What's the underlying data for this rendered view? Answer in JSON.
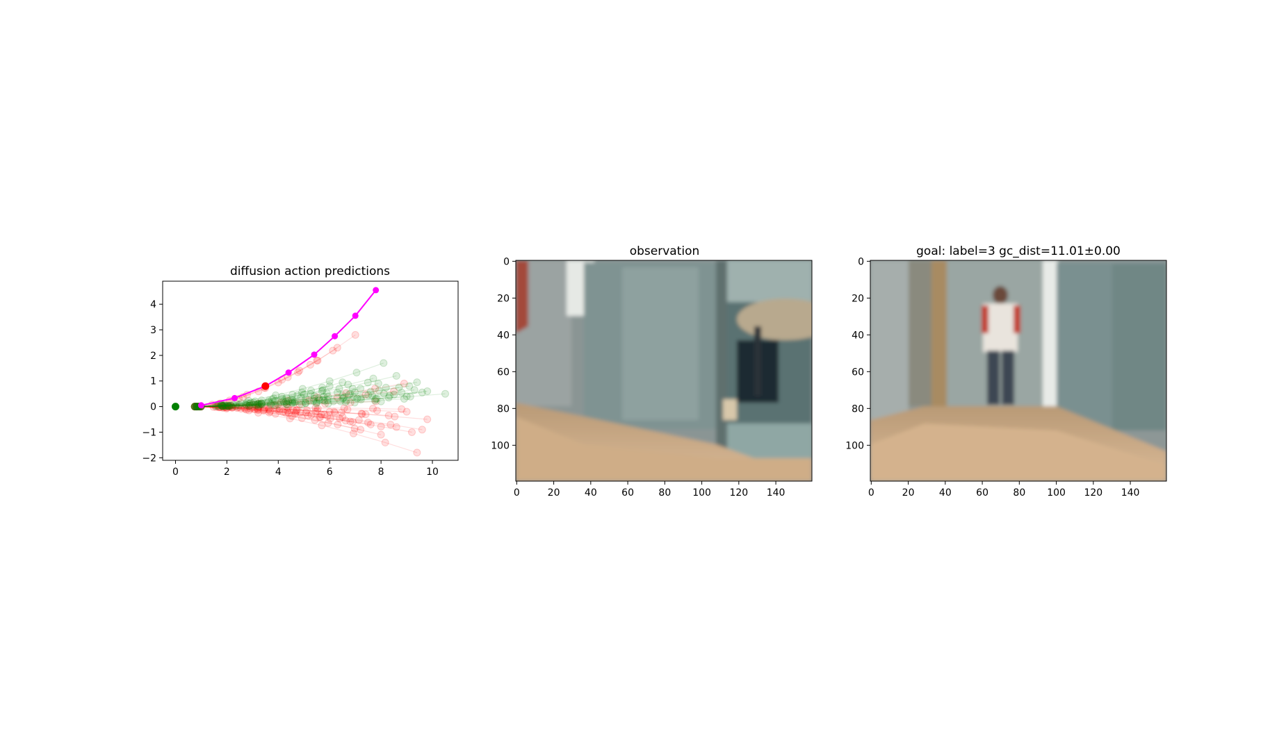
{
  "panels": {
    "plot": {
      "title": "diffusion action predictions"
    },
    "observation": {
      "title": "observation"
    },
    "goal": {
      "title": "goal: label=3 gc_dist=11.01±0.00"
    }
  },
  "chart_data": [
    {
      "type": "line",
      "title": "diffusion action predictions",
      "xlabel": "",
      "ylabel": "",
      "xlim": [
        -0.5,
        11.0
      ],
      "ylim": [
        -2.1,
        4.9
      ],
      "xticks": [
        0,
        2,
        4,
        6,
        8,
        10
      ],
      "yticks": [
        -2,
        -1,
        0,
        1,
        2,
        3,
        4
      ],
      "grid": false,
      "start_point": {
        "x": 0,
        "y": 0,
        "color": "#008000"
      },
      "selected_action": {
        "color": "#ff00ff",
        "points": [
          [
            1.0,
            0.05
          ],
          [
            2.3,
            0.33
          ],
          [
            3.5,
            0.8
          ],
          [
            4.4,
            1.33
          ],
          [
            5.4,
            2.03
          ],
          [
            6.2,
            2.75
          ],
          [
            7.0,
            3.55
          ],
          [
            7.8,
            4.55
          ]
        ],
        "highlight_index": 2,
        "highlight_color": "#ff0000"
      },
      "positive_samples_color": "#008000",
      "negative_samples_color": "#ff0000",
      "positive_sample_endpoints": [
        [
          8.1,
          1.7
        ],
        [
          8.6,
          1.2
        ],
        [
          9.1,
          0.8
        ],
        [
          9.4,
          0.95
        ],
        [
          10.5,
          0.5
        ],
        [
          9.8,
          0.6
        ],
        [
          8.8,
          0.55
        ],
        [
          7.9,
          0.9
        ],
        [
          7.2,
          0.7
        ],
        [
          6.5,
          0.95
        ],
        [
          8.3,
          0.35
        ],
        [
          9.0,
          0.4
        ],
        [
          7.5,
          0.45
        ],
        [
          6.0,
          0.8
        ],
        [
          8.7,
          0.75
        ],
        [
          9.6,
          0.55
        ],
        [
          7.7,
          1.1
        ],
        [
          5.7,
          0.6
        ],
        [
          8.9,
          0.3
        ],
        [
          9.3,
          0.65
        ],
        [
          6.8,
          0.5
        ],
        [
          8.0,
          0.2
        ]
      ],
      "negative_sample_endpoints": [
        [
          9.4,
          -1.8
        ],
        [
          9.2,
          -1.0
        ],
        [
          8.6,
          -0.8
        ],
        [
          9.8,
          -0.5
        ],
        [
          8.9,
          0.9
        ],
        [
          7.6,
          -0.7
        ],
        [
          6.9,
          -0.6
        ],
        [
          8.3,
          -0.35
        ],
        [
          9.0,
          -0.2
        ],
        [
          7.2,
          -0.9
        ],
        [
          6.5,
          -0.4
        ],
        [
          8.0,
          -1.1
        ],
        [
          7.8,
          0.2
        ],
        [
          6.2,
          -0.25
        ],
        [
          9.6,
          -0.9
        ],
        [
          5.8,
          -0.3
        ],
        [
          8.5,
          0.6
        ],
        [
          7.0,
          2.8
        ],
        [
          6.3,
          2.3
        ],
        [
          8.8,
          -0.1
        ],
        [
          5.5,
          1.8
        ],
        [
          7.4,
          -0.3
        ]
      ]
    },
    {
      "type": "image",
      "title": "observation",
      "xticks": [
        0,
        20,
        40,
        60,
        80,
        100,
        120,
        140
      ],
      "yticks": [
        0,
        20,
        40,
        60,
        80,
        100
      ],
      "width": 160,
      "height": 120
    },
    {
      "type": "image",
      "title": "goal: label=3 gc_dist=11.01±0.00",
      "xticks": [
        0,
        20,
        40,
        60,
        80,
        100,
        120,
        140
      ],
      "yticks": [
        0,
        20,
        40,
        60,
        80,
        100
      ],
      "width": 160,
      "height": 120
    }
  ]
}
